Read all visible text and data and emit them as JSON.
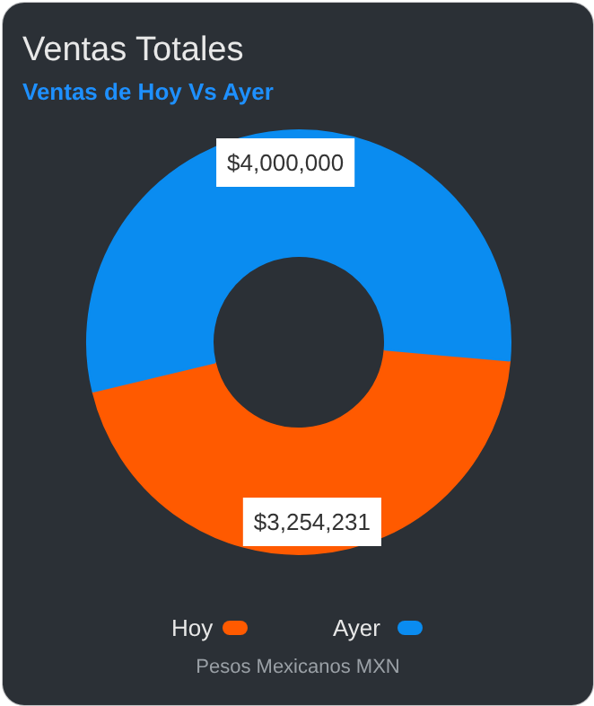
{
  "chart_data": {
    "type": "donut",
    "title": "Ventas Totales",
    "subtitle": "Ventas de  Hoy Vs Ayer",
    "categories": [
      "Hoy",
      "Ayer"
    ],
    "values": [
      3254231,
      4000000
    ],
    "colors": [
      "#ff5a00",
      "#0a8cf0"
    ],
    "value_labels": [
      "$3,254,231",
      "$4,000,000"
    ],
    "legend": "bottom",
    "annotations": [
      "Pesos Mexicanos MXN"
    ]
  }
}
